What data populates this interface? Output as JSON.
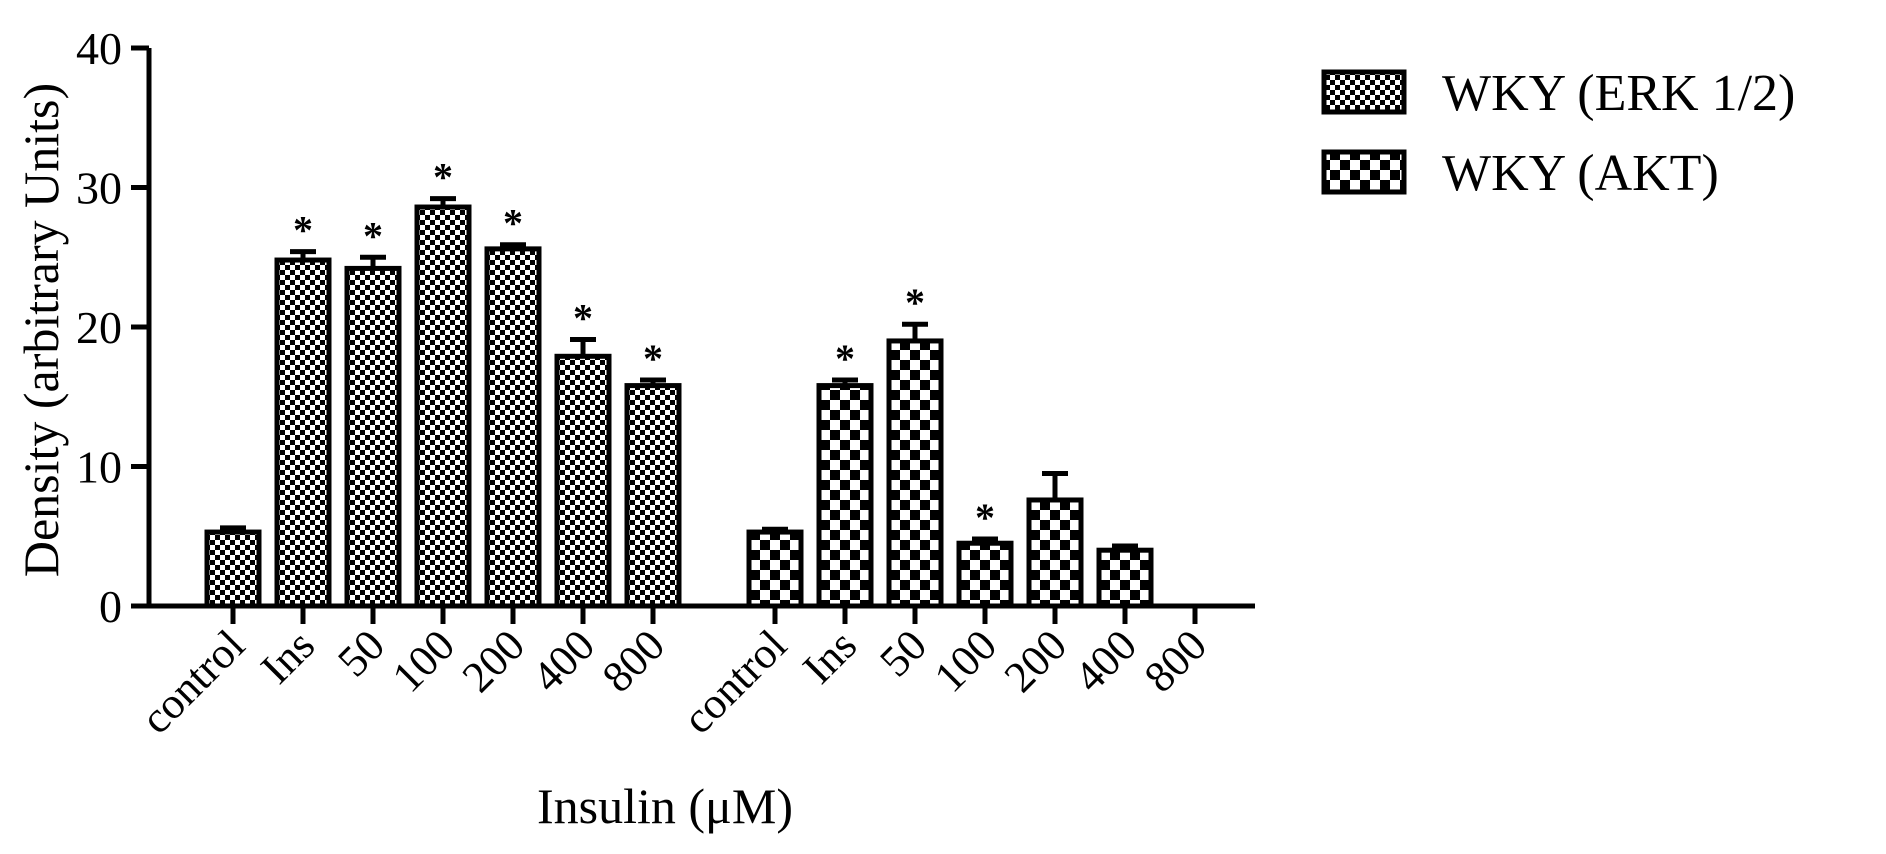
{
  "chart_data": {
    "type": "bar",
    "xlabel": "Insulin (μM)",
    "ylabel": "Density (arbitrary Units)",
    "ylim": [
      0,
      40
    ],
    "yticks": [
      0,
      10,
      20,
      30,
      40
    ],
    "grid": false,
    "legend_position": "top-right",
    "groups": [
      {
        "name": "WKY (ERK 1/2)",
        "pattern": "fine-checker",
        "categories": [
          "control",
          "Ins",
          "50",
          "100",
          "200",
          "400",
          "800"
        ],
        "values": [
          5.3,
          24.8,
          24.2,
          28.6,
          25.6,
          17.9,
          15.8
        ],
        "errors": [
          0.3,
          0.6,
          0.8,
          0.6,
          0.3,
          1.2,
          0.4
        ],
        "significant": [
          false,
          true,
          true,
          true,
          true,
          true,
          true
        ]
      },
      {
        "name": "WKY (AKT)",
        "pattern": "coarse-checker",
        "categories": [
          "control",
          "Ins",
          "50",
          "100",
          "200",
          "400",
          "800"
        ],
        "values": [
          5.3,
          15.8,
          19.0,
          4.5,
          7.6,
          4.0,
          0
        ],
        "errors": [
          0.2,
          0.4,
          1.2,
          0.3,
          1.9,
          0.3,
          0
        ],
        "significant": [
          false,
          true,
          true,
          true,
          false,
          false,
          false
        ]
      }
    ],
    "significance_marker": "*",
    "colors": {
      "bar_edge": "#000000",
      "pattern_dark": "#000000",
      "pattern_light": "#ffffff",
      "star": "#111133"
    }
  }
}
